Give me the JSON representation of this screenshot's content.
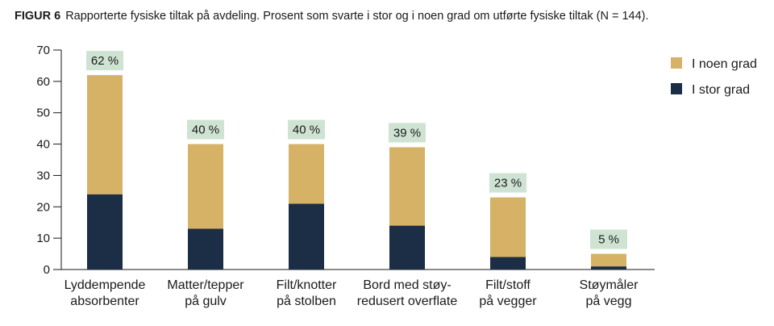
{
  "caption": {
    "figure": "FIGUR 6",
    "text": "Rapporterte fysiske tiltak på avdeling. Prosent som svarte i stor og i noen grad om utførte fysiske tiltak (N = 144)."
  },
  "colors": {
    "i_noen_grad": "#d6b266",
    "i_stor_grad": "#1c2e45",
    "label_bg": "#cfe3d3",
    "axis": "#1a1a1a"
  },
  "chart_data": {
    "type": "bar",
    "stacked": true,
    "categories": [
      [
        "Lyddempende",
        "absorbenter"
      ],
      [
        "Matter/tepper",
        "på gulv"
      ],
      [
        "Filt/knotter",
        "på stolben"
      ],
      [
        "Bord med støy-",
        "redusert overflate"
      ],
      [
        "Filt/stoff",
        "på vegger"
      ],
      [
        "Støymåler",
        "på vegg"
      ]
    ],
    "series": [
      {
        "name": "I stor grad",
        "values": [
          24,
          13,
          21,
          14,
          4,
          1
        ]
      },
      {
        "name": "I noen grad",
        "values": [
          38,
          27,
          19,
          25,
          19,
          4
        ]
      }
    ],
    "totals": [
      "62 %",
      "40 %",
      "40 %",
      "39 %",
      "23 %",
      "5 %"
    ],
    "yticks": [
      0,
      10,
      20,
      30,
      40,
      50,
      60,
      70
    ],
    "ylim": [
      0,
      70
    ],
    "legend": [
      {
        "label": "I noen grad",
        "color_key": "i_noen_grad"
      },
      {
        "label": "I stor grad",
        "color_key": "i_stor_grad"
      }
    ],
    "legend_position": "top-right",
    "grid": false
  }
}
